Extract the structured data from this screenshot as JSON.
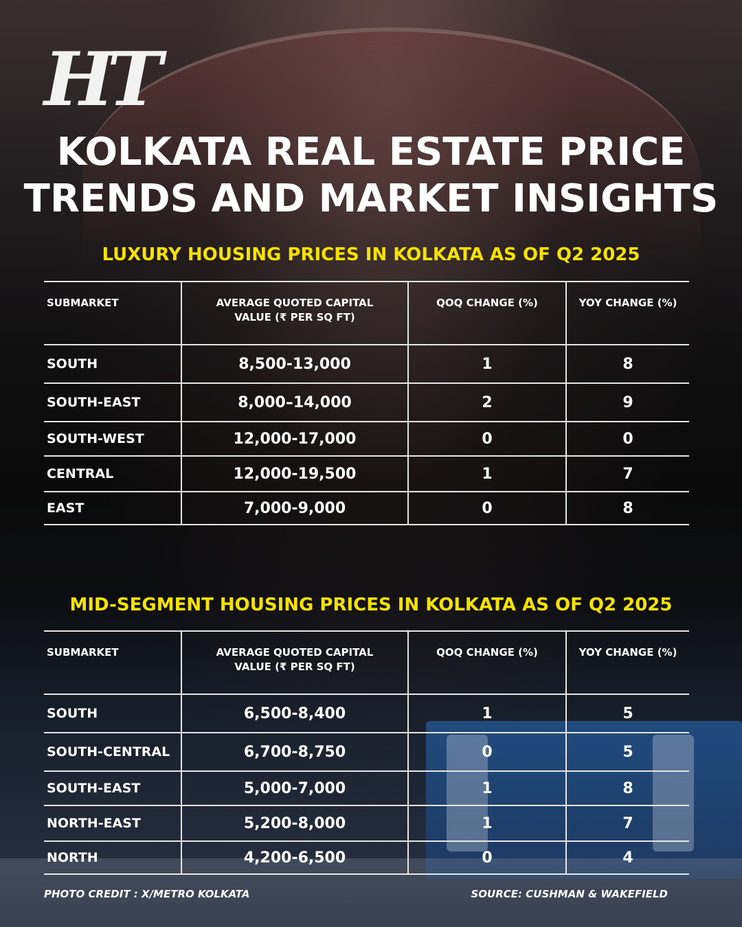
{
  "brand": {
    "logo_text": "HT"
  },
  "title": {
    "line1": "KOLKATA REAL ESTATE PRICE",
    "line2": "TRENDS AND MARKET INSIGHTS"
  },
  "colors": {
    "heading": "#f6e200",
    "text": "#ffffff"
  },
  "luxury": {
    "heading": "LUXURY HOUSING PRICES IN KOLKATA AS OF Q2 2025",
    "columns": [
      "SUBMARKET",
      "AVERAGE QUOTED CAPITAL VALUE (₹ PER SQ FT)",
      "QOQ CHANGE (%)",
      "YOY CHANGE (%)"
    ],
    "rows": [
      {
        "submarket": "SOUTH",
        "value": "8,500-13,000",
        "qoq": "1",
        "yoy": "8"
      },
      {
        "submarket": "SOUTH-EAST",
        "value": "8,000–14,000",
        "qoq": "2",
        "yoy": "9"
      },
      {
        "submarket": "SOUTH-WEST",
        "value": "12,000-17,000",
        "qoq": "0",
        "yoy": "0"
      },
      {
        "submarket": "CENTRAL",
        "value": "12,000-19,500",
        "qoq": "1",
        "yoy": "7"
      },
      {
        "submarket": "EAST",
        "value": "7,000-9,000",
        "qoq": "0",
        "yoy": "8"
      }
    ]
  },
  "midsegment": {
    "heading": "MID-SEGMENT HOUSING PRICES IN KOLKATA AS OF Q2 2025",
    "columns": [
      "SUBMARKET",
      "AVERAGE QUOTED CAPITAL VALUE (₹ PER SQ FT)",
      "QOQ CHANGE (%)",
      "YOY CHANGE (%)"
    ],
    "rows": [
      {
        "submarket": "SOUTH",
        "value": "6,500-8,400",
        "qoq": "1",
        "yoy": "5"
      },
      {
        "submarket": "SOUTH-CENTRAL",
        "value": "6,700-8,750",
        "qoq": "0",
        "yoy": "5"
      },
      {
        "submarket": "SOUTH-EAST",
        "value": "5,000-7,000",
        "qoq": "1",
        "yoy": "8"
      },
      {
        "submarket": "NORTH-EAST",
        "value": "5,200-8,000",
        "qoq": "1",
        "yoy": "7"
      },
      {
        "submarket": "NORTH",
        "value": "4,200-6,500",
        "qoq": "0",
        "yoy": "4"
      }
    ]
  },
  "footer": {
    "photo_credit": "PHOTO CREDIT : X/METRO KOLKATA",
    "source": "SOURCE: CUSHMAN & WAKEFIELD"
  }
}
